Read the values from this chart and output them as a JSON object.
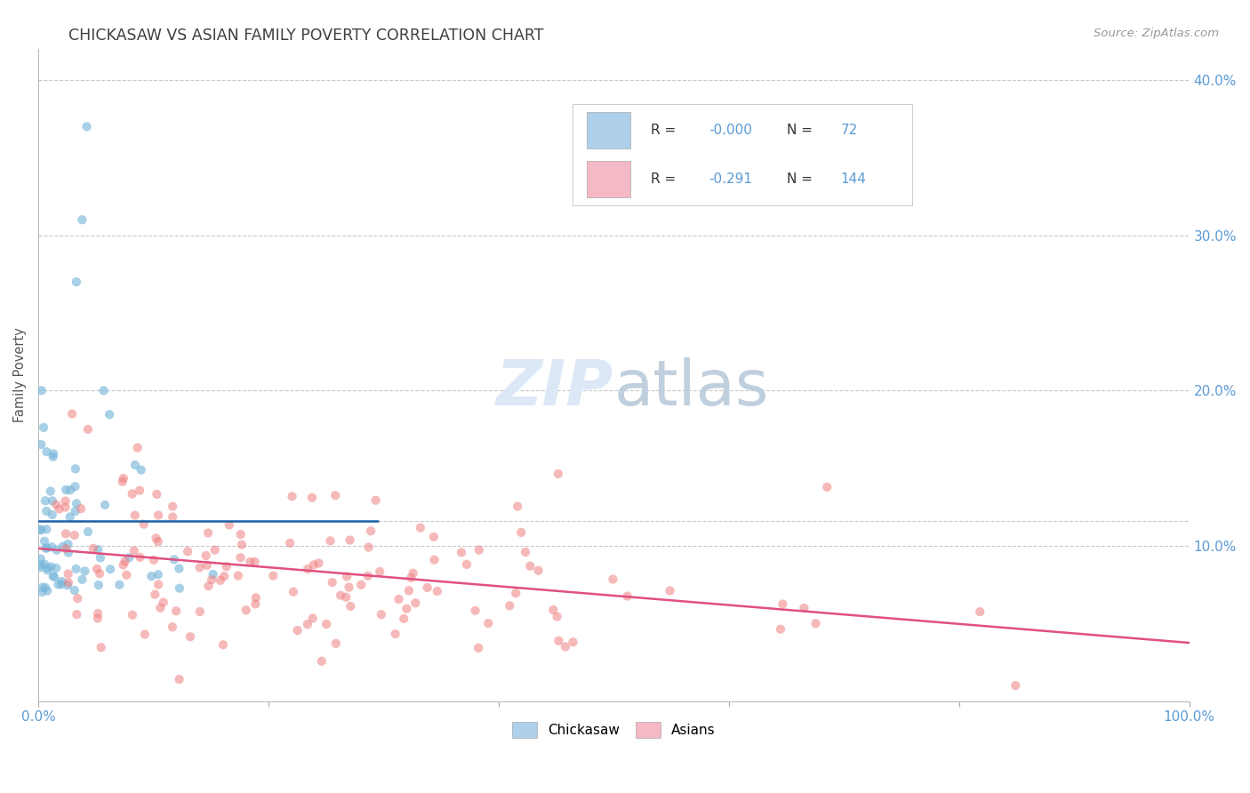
{
  "title": "CHICKASAW VS ASIAN FAMILY POVERTY CORRELATION CHART",
  "source": "Source: ZipAtlas.com",
  "ylabel": "Family Poverty",
  "xlim": [
    0,
    1.0
  ],
  "ylim": [
    0,
    0.42
  ],
  "background_color": "#ffffff",
  "grid_color": "#c8c8c8",
  "chickasaw_color": "#7ab8db",
  "asian_color": "#f08080",
  "trendline_blue": "#1a5fa8",
  "trendline_pink": "#e05080",
  "watermark_color": "#dce8f5",
  "axis_label_color": "#5b9bd5",
  "title_color": "#404040",
  "legend_R_color": "#333333",
  "legend_val_color": "#5b9bd5",
  "legend_box_blue": "#aed0ea",
  "legend_box_pink": "#f5b8c5",
  "seed": 42
}
